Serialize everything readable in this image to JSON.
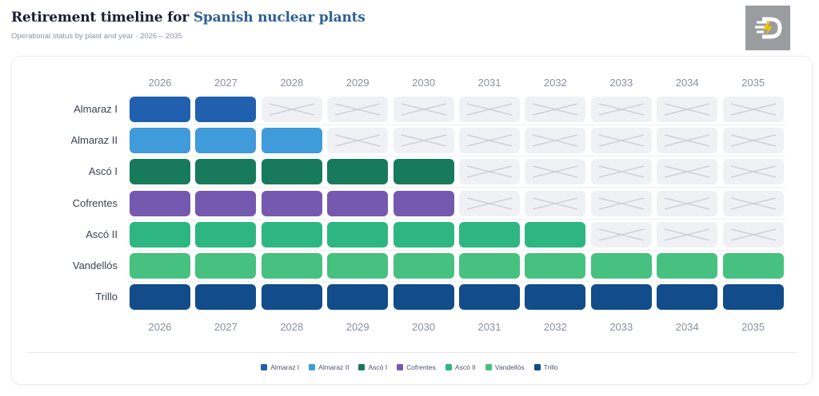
{
  "header": {
    "title_prefix": "Retirement timeline for",
    "title_highlight": "Spanish nuclear plants",
    "subtitle": "Operational status by plant and year · 2026 – 2035"
  },
  "logo": {
    "icon": "brand-logo-icon"
  },
  "chart_data": {
    "type": "heatmap",
    "years": [
      "2026",
      "2027",
      "2028",
      "2029",
      "2030",
      "2031",
      "2032",
      "2033",
      "2034",
      "2035"
    ],
    "plants": [
      {
        "name": "Almaraz I",
        "color": "#2060ae",
        "operational_through": "2027"
      },
      {
        "name": "Almaraz II",
        "color": "#3f9bd9",
        "operational_through": "2028"
      },
      {
        "name": "Ascó I",
        "color": "#177a5b",
        "operational_through": "2030"
      },
      {
        "name": "Cofrentes",
        "color": "#7558b0",
        "operational_through": "2030"
      },
      {
        "name": "Ascó II",
        "color": "#2eb682",
        "operational_through": "2032"
      },
      {
        "name": "Vandellós",
        "color": "#46c180",
        "operational_through": "2035"
      },
      {
        "name": "Trillo",
        "color": "#124c8a",
        "operational_through": "2035"
      }
    ],
    "retired_color": "#f0f1f5",
    "retired_mark": "cross",
    "legend_position": "bottom-center"
  }
}
